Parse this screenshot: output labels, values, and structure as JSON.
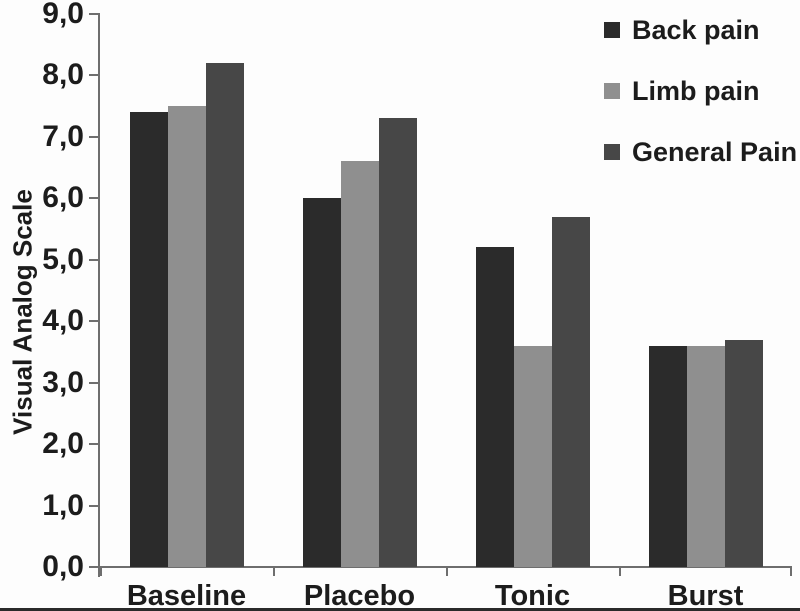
{
  "chart_data": {
    "type": "bar",
    "title": "",
    "xlabel": "",
    "ylabel": "Visual Analog Scale",
    "categories": [
      "Baseline",
      "Placebo",
      "Tonic",
      "Burst"
    ],
    "series": [
      {
        "name": "Back pain",
        "color": "#2b2b2b",
        "values": [
          7.4,
          6.0,
          5.2,
          3.6
        ]
      },
      {
        "name": "Limb pain",
        "color": "#8f8f8f",
        "values": [
          7.5,
          6.6,
          3.6,
          3.6
        ]
      },
      {
        "name": "General Pain",
        "color": "#474747",
        "values": [
          8.2,
          7.3,
          5.7,
          3.7
        ]
      }
    ],
    "ylim": [
      0,
      9
    ],
    "ytick_step": 1,
    "ytick_labels": [
      "0,0",
      "1,0",
      "2,0",
      "3,0",
      "4,0",
      "5,0",
      "6,0",
      "7,0",
      "8,0",
      "9,0"
    ],
    "grid": false,
    "legend_position": "top-right",
    "axis_color": "#6e6e6e"
  }
}
